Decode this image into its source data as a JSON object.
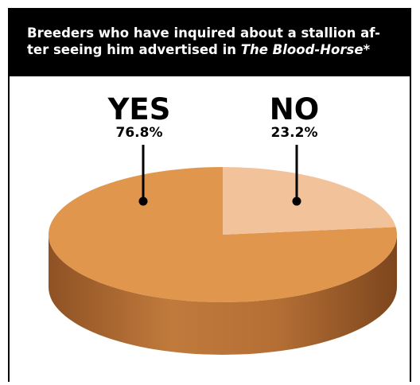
{
  "header": {
    "title_lead": "Breeders who have inquired about a stallion af-ter seeing him advertised in ",
    "title_emphasis": "The Blood-Horse",
    "title_trail": "*"
  },
  "colors": {
    "background": "#ffffff",
    "header_background": "#000000",
    "header_text": "#ffffff",
    "yes_top": "#e0964c",
    "yes_side": "#b06a32",
    "no_top": "#f2c29a"
  },
  "chart_data": {
    "type": "pie",
    "style": "3d",
    "slices": [
      {
        "label": "YES",
        "value": 76.8,
        "value_label": "76.8%"
      },
      {
        "label": "NO",
        "value": 23.2,
        "value_label": "23.2%"
      }
    ]
  }
}
